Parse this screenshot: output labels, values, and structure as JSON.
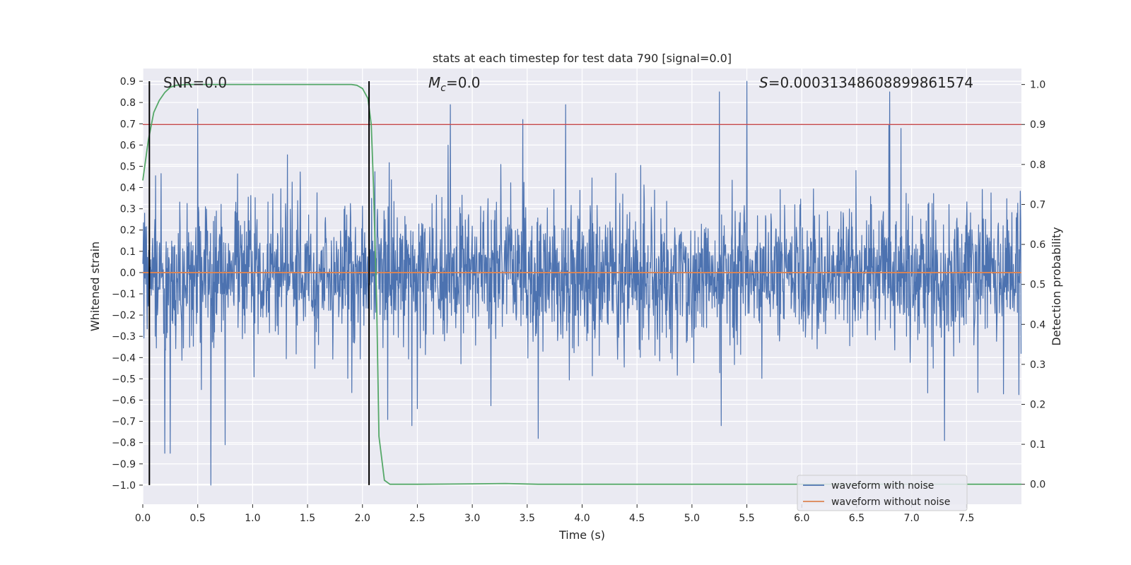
{
  "chart_data": {
    "type": "line",
    "title": "stats at each timestep for test data 790 [signal=0.0]",
    "xlabel": "Time (s)",
    "ylabel": "Whitened strain",
    "ylabel_right": "Detection probability",
    "xlim": [
      0.0,
      8.0
    ],
    "ylim": [
      -1.09,
      0.96
    ],
    "ylim_right": [
      -0.05,
      1.04
    ],
    "x_ticks": [
      0.0,
      0.5,
      1.0,
      1.5,
      2.0,
      2.5,
      3.0,
      3.5,
      4.0,
      4.5,
      5.0,
      5.5,
      6.0,
      6.5,
      7.0,
      7.5
    ],
    "x_tick_labels": [
      "0.0",
      "0.5",
      "1.0",
      "1.5",
      "2.0",
      "2.5",
      "3.0",
      "3.5",
      "4.0",
      "4.5",
      "5.0",
      "5.5",
      "6.0",
      "6.5",
      "7.0",
      "7.5"
    ],
    "y_ticks": [
      0.9,
      0.8,
      0.7,
      0.6,
      0.5,
      0.4,
      0.3,
      0.2,
      0.1,
      0.0,
      -0.1,
      -0.2,
      -0.3,
      -0.4,
      -0.5,
      -0.6,
      -0.7,
      -0.8,
      -0.9,
      -1.0
    ],
    "y_tick_labels": [
      "0.9",
      "0.8",
      "0.7",
      "0.6",
      "0.5",
      "0.4",
      "0.3",
      "0.2",
      "0.1",
      "0.0",
      "−0.1",
      "−0.2",
      "−0.3",
      "−0.4",
      "−0.5",
      "−0.6",
      "−0.7",
      "−0.8",
      "−0.9",
      "−1.0"
    ],
    "y_ticks_right": [
      1.0,
      0.9,
      0.8,
      0.7,
      0.6,
      0.5,
      0.4,
      0.3,
      0.2,
      0.1,
      0.0
    ],
    "y_tick_labels_right": [
      "1.0",
      "0.9",
      "0.8",
      "0.7",
      "0.6",
      "0.5",
      "0.4",
      "0.3",
      "0.2",
      "0.1",
      "0.0"
    ],
    "grid": true,
    "annotations": {
      "snr": "SNR=0.0",
      "mc_symbol": "M",
      "mc_subscript": "c",
      "mc_value": "=0.0",
      "s_symbol": "S",
      "s_value": "=0.00031348608899861574"
    },
    "series": [
      {
        "name": "waveform with noise",
        "color": "#4c72b0",
        "description": "dense noise band, typically within ±0.3, peaks up to 0.9 and down to −1.0",
        "notable_peaks": [
          [
            0.5,
            0.77
          ],
          [
            2.8,
            0.79
          ],
          [
            3.85,
            0.79
          ],
          [
            5.25,
            0.85
          ],
          [
            5.5,
            0.9
          ],
          [
            6.8,
            0.85
          ]
        ],
        "notable_troughs": [
          [
            0.2,
            -0.85
          ],
          [
            0.25,
            -0.85
          ],
          [
            0.62,
            -1.0
          ],
          [
            0.75,
            -0.81
          ],
          [
            3.6,
            -0.78
          ],
          [
            7.3,
            -0.79
          ]
        ]
      },
      {
        "name": "waveform without noise",
        "color": "#dd8452",
        "x": [
          0.0,
          8.0
        ],
        "values": [
          0.0,
          0.0
        ]
      },
      {
        "name": "detection probability",
        "axis": "right",
        "color": "#55a868",
        "x": [
          0.0,
          0.05,
          0.1,
          0.15,
          0.2,
          0.25,
          0.3,
          0.4,
          0.5,
          1.0,
          1.5,
          1.9,
          1.95,
          2.0,
          2.05,
          2.08,
          2.1,
          2.13,
          2.15,
          2.2,
          2.25,
          2.3,
          2.5,
          3.0,
          3.3,
          3.6,
          4.0,
          5.0,
          6.0,
          7.0,
          8.0
        ],
        "values": [
          0.76,
          0.86,
          0.93,
          0.96,
          0.98,
          0.993,
          0.998,
          1.0,
          1.0,
          1.0,
          1.0,
          1.0,
          0.998,
          0.99,
          0.965,
          0.9,
          0.75,
          0.45,
          0.12,
          0.01,
          0.0,
          0.0,
          0.0,
          0.001,
          0.002,
          0.0,
          0.0,
          0.0,
          0.0,
          0.0,
          0.0
        ]
      },
      {
        "name": "threshold",
        "axis": "right",
        "color": "#c44e52",
        "values_const": 0.9
      },
      {
        "name": "markers",
        "color": "#000000",
        "x": [
          0.06,
          2.06
        ]
      }
    ],
    "legend": {
      "placement": "lower-right",
      "entries": [
        "waveform with noise",
        "waveform without noise"
      ]
    }
  }
}
